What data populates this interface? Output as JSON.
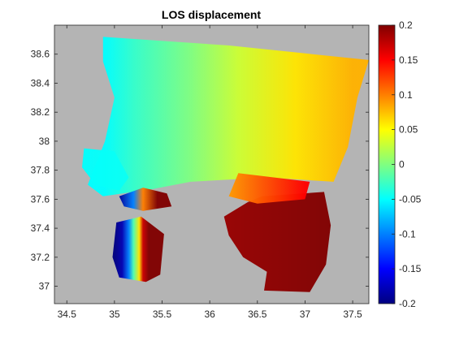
{
  "chart_data": {
    "type": "heatmap",
    "title": "LOS displacement",
    "xlabel": "",
    "ylabel": "",
    "xlim": [
      34.37,
      37.67
    ],
    "ylim": [
      36.88,
      38.8
    ],
    "xticks": [
      34.5,
      35,
      35.5,
      36,
      36.5,
      37,
      37.5
    ],
    "xtick_labels": [
      "34.5",
      "35",
      "35.5",
      "36",
      "36.5",
      "37",
      "37.5"
    ],
    "yticks": [
      37,
      37.2,
      37.4,
      37.6,
      37.8,
      38,
      38.2,
      38.4,
      38.6
    ],
    "ytick_labels": [
      "37",
      "37.2",
      "37.4",
      "37.6",
      "37.8",
      "38",
      "38.2",
      "38.4",
      "38.6"
    ],
    "background_color": "#b4b4b4",
    "colormap": "jet",
    "grid": false,
    "colorbar": {
      "clim": [
        -0.2,
        0.2
      ],
      "ticks": [
        -0.2,
        -0.15,
        -0.1,
        -0.05,
        0,
        0.05,
        0.1,
        0.15,
        0.2
      ],
      "tick_labels": [
        "-0.2",
        "-0.15",
        "-0.1",
        "-0.05",
        "0",
        "0.05",
        "0.1",
        "0.15",
        "0.2"
      ]
    },
    "regions": [
      {
        "name": "main-swath",
        "polygon": [
          [
            34.88,
            38.72
          ],
          [
            36.2,
            38.66
          ],
          [
            37.67,
            38.56
          ],
          [
            37.55,
            38.3
          ],
          [
            37.45,
            37.96
          ],
          [
            37.3,
            37.72
          ],
          [
            36.6,
            37.75
          ],
          [
            35.8,
            37.72
          ],
          [
            35.4,
            37.67
          ],
          [
            34.88,
            37.62
          ],
          [
            34.72,
            37.7
          ],
          [
            34.9,
            38.0
          ],
          [
            35.0,
            38.3
          ],
          [
            34.88,
            38.55
          ]
        ],
        "stops": [
          [
            34.9,
            -0.05
          ],
          [
            35.2,
            -0.03
          ],
          [
            35.8,
            0.0
          ],
          [
            36.3,
            0.03
          ],
          [
            36.9,
            0.06
          ],
          [
            37.5,
            0.08
          ]
        ],
        "ygrad": 0.05
      },
      {
        "name": "northwest-patch",
        "polygon": [
          [
            34.68,
            37.95
          ],
          [
            35.0,
            37.93
          ],
          [
            35.15,
            37.75
          ],
          [
            35.05,
            37.66
          ],
          [
            34.8,
            37.7
          ],
          [
            34.66,
            37.82
          ]
        ],
        "stops": [
          [
            34.6,
            -0.05
          ],
          [
            35.2,
            -0.045
          ]
        ]
      },
      {
        "name": "east-red-block",
        "polygon": [
          [
            36.55,
            37.62
          ],
          [
            37.2,
            37.65
          ],
          [
            37.27,
            37.42
          ],
          [
            37.22,
            37.15
          ],
          [
            37.05,
            36.96
          ],
          [
            36.57,
            36.97
          ],
          [
            36.6,
            37.1
          ],
          [
            36.35,
            37.2
          ],
          [
            36.2,
            37.35
          ],
          [
            36.15,
            37.48
          ],
          [
            36.4,
            37.58
          ]
        ],
        "stops": [
          [
            36.1,
            0.19
          ],
          [
            37.3,
            0.2
          ]
        ]
      },
      {
        "name": "orange-transition",
        "polygon": [
          [
            36.3,
            37.78
          ],
          [
            37.05,
            37.72
          ],
          [
            37.0,
            37.6
          ],
          [
            36.5,
            37.57
          ],
          [
            36.2,
            37.62
          ]
        ],
        "stops": [
          [
            36.2,
            0.09
          ],
          [
            37.0,
            0.15
          ]
        ]
      },
      {
        "name": "southwest-fringe",
        "polygon": [
          [
            35.02,
            37.44
          ],
          [
            35.28,
            37.48
          ],
          [
            35.52,
            37.36
          ],
          [
            35.48,
            37.08
          ],
          [
            35.33,
            37.03
          ],
          [
            35.05,
            37.06
          ],
          [
            34.98,
            37.2
          ]
        ],
        "stops": [
          [
            35.0,
            -0.2
          ],
          [
            35.08,
            -0.18
          ],
          [
            35.15,
            -0.1
          ],
          [
            35.2,
            -0.02
          ],
          [
            35.26,
            0.06
          ],
          [
            35.3,
            0.17
          ],
          [
            35.36,
            0.2
          ],
          [
            35.5,
            0.2
          ]
        ]
      },
      {
        "name": "central-fringe",
        "polygon": [
          [
            35.05,
            37.62
          ],
          [
            35.3,
            37.68
          ],
          [
            35.55,
            37.64
          ],
          [
            35.6,
            37.55
          ],
          [
            35.3,
            37.52
          ],
          [
            35.1,
            37.55
          ]
        ],
        "stops": [
          [
            35.05,
            -0.19
          ],
          [
            35.2,
            -0.1
          ],
          [
            35.3,
            0.1
          ],
          [
            35.45,
            0.2
          ],
          [
            35.6,
            0.2
          ]
        ]
      }
    ]
  }
}
